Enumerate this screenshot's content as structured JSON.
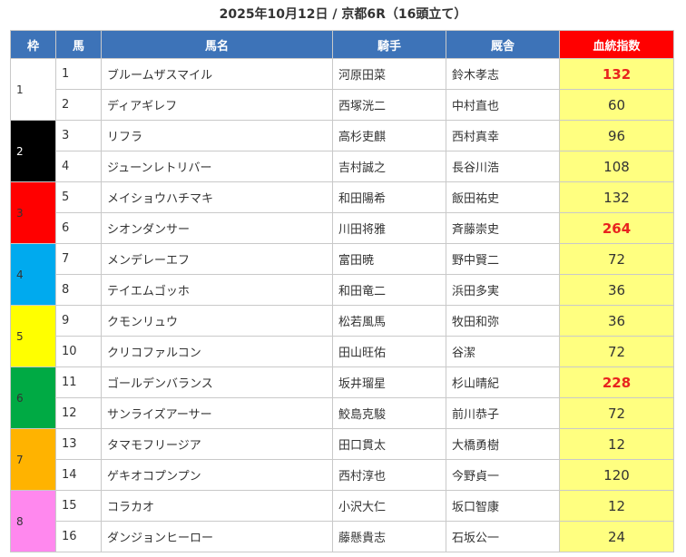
{
  "title": "2025年10月12日 / 京都6R（16頭立て）",
  "headers": [
    "枠",
    "馬",
    "馬名",
    "騎手",
    "厩舎",
    "血統指数"
  ],
  "colors": {
    "header": "#3d73b8",
    "score_header": "#ff0000",
    "score_bg": "#ffff80",
    "highlight_text": "#e8231e"
  },
  "frames": [
    {
      "label": "1",
      "bg": "#ffffff",
      "fg": "#333333"
    },
    {
      "label": "2",
      "bg": "#000000",
      "fg": "#ffffff"
    },
    {
      "label": "3",
      "bg": "#ff0000",
      "fg": "#333333"
    },
    {
      "label": "4",
      "bg": "#00aaee",
      "fg": "#333333"
    },
    {
      "label": "5",
      "bg": "#ffff00",
      "fg": "#333333"
    },
    {
      "label": "6",
      "bg": "#00aa44",
      "fg": "#333333"
    },
    {
      "label": "7",
      "bg": "#ffb300",
      "fg": "#333333"
    },
    {
      "label": "8",
      "bg": "#ff88ee",
      "fg": "#333333"
    }
  ],
  "rows": [
    {
      "num": "1",
      "name": "ブルームザスマイル",
      "jockey": "河原田菜",
      "trainer": "鈴木孝志",
      "score": "132",
      "highlight": true
    },
    {
      "num": "2",
      "name": "ディアギレフ",
      "jockey": "西塚洸二",
      "trainer": "中村直也",
      "score": "60",
      "highlight": false
    },
    {
      "num": "3",
      "name": "リフラ",
      "jockey": "高杉吏麒",
      "trainer": "西村真幸",
      "score": "96",
      "highlight": false
    },
    {
      "num": "4",
      "name": "ジューンレトリバー",
      "jockey": "吉村誠之",
      "trainer": "長谷川浩",
      "score": "108",
      "highlight": false
    },
    {
      "num": "5",
      "name": "メイショウハチマキ",
      "jockey": "和田陽希",
      "trainer": "飯田祐史",
      "score": "132",
      "highlight": false
    },
    {
      "num": "6",
      "name": "シオンダンサー",
      "jockey": "川田将雅",
      "trainer": "斉藤崇史",
      "score": "264",
      "highlight": true
    },
    {
      "num": "7",
      "name": "メンデレーエフ",
      "jockey": "富田暁",
      "trainer": "野中賢二",
      "score": "72",
      "highlight": false
    },
    {
      "num": "8",
      "name": "テイエムゴッホ",
      "jockey": "和田竜二",
      "trainer": "浜田多実",
      "score": "36",
      "highlight": false
    },
    {
      "num": "9",
      "name": "クモンリュウ",
      "jockey": "松若風馬",
      "trainer": "牧田和弥",
      "score": "36",
      "highlight": false
    },
    {
      "num": "10",
      "name": "クリコファルコン",
      "jockey": "田山旺佑",
      "trainer": "谷潔",
      "score": "72",
      "highlight": false
    },
    {
      "num": "11",
      "name": "ゴールデンバランス",
      "jockey": "坂井瑠星",
      "trainer": "杉山晴紀",
      "score": "228",
      "highlight": true
    },
    {
      "num": "12",
      "name": "サンライズアーサー",
      "jockey": "鮫島克駿",
      "trainer": "前川恭子",
      "score": "72",
      "highlight": false
    },
    {
      "num": "13",
      "name": "タマモフリージア",
      "jockey": "田口貫太",
      "trainer": "大橋勇樹",
      "score": "12",
      "highlight": false
    },
    {
      "num": "14",
      "name": "ゲキオコプンプン",
      "jockey": "西村淳也",
      "trainer": "今野貞一",
      "score": "120",
      "highlight": false
    },
    {
      "num": "15",
      "name": "コラカオ",
      "jockey": "小沢大仁",
      "trainer": "坂口智康",
      "score": "12",
      "highlight": false
    },
    {
      "num": "16",
      "name": "ダンジョンヒーロー",
      "jockey": "藤懸貴志",
      "trainer": "石坂公一",
      "score": "24",
      "highlight": false
    }
  ]
}
